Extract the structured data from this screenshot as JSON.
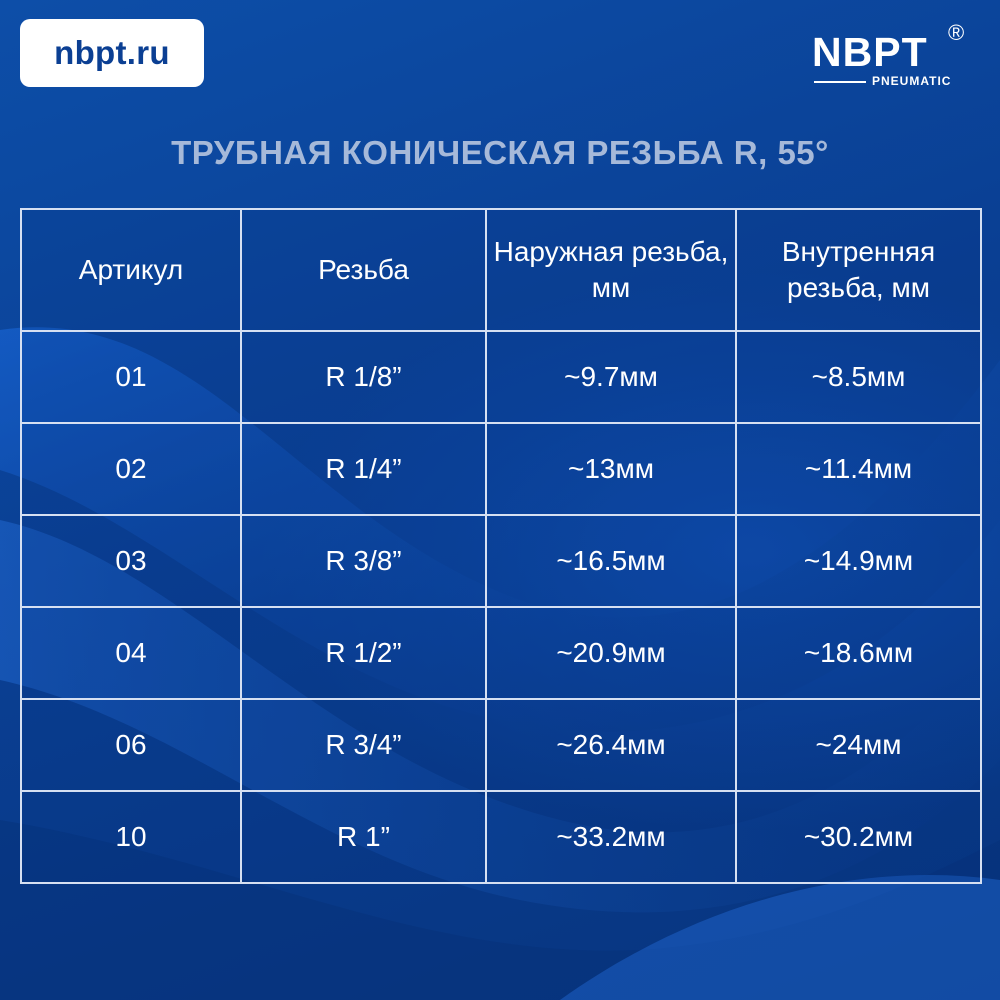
{
  "site": {
    "label": "nbpt.ru"
  },
  "logo": {
    "brand": "NBPT",
    "registered": "®",
    "subtitle": "PNEUMATIC"
  },
  "title": "ТРУБНАЯ КОНИЧЕСКАЯ РЕЗЬБА R, 55°",
  "table": {
    "headers": [
      "Артикул",
      "Резьба",
      "Наружная резьба, мм",
      "Внутренняя резьба, мм"
    ],
    "rows": [
      [
        "01",
        "R 1/8”",
        "~9.7мм",
        "~8.5мм"
      ],
      [
        "02",
        "R 1/4”",
        "~13мм",
        "~11.4мм"
      ],
      [
        "03",
        "R 3/8”",
        "~16.5мм",
        "~14.9мм"
      ],
      [
        "04",
        "R 1/2”",
        "~20.9мм",
        "~18.6мм"
      ],
      [
        "06",
        "R 3/4”",
        "~26.4мм",
        "~24мм"
      ],
      [
        "10",
        "R 1”",
        "~33.2мм",
        "~30.2мм"
      ]
    ]
  },
  "colors": {
    "background": "#0a3f93",
    "title": "#a6b9d9",
    "badge_text": "#0b3f93",
    "grid": "#d6e0f2"
  }
}
